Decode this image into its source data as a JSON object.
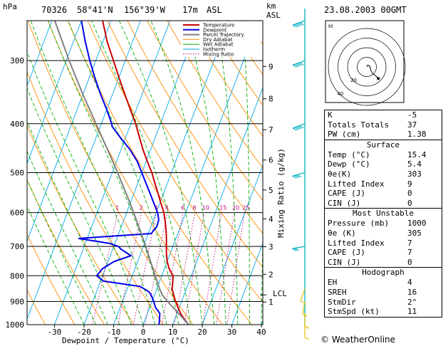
{
  "header": {
    "station": "70326",
    "lat": "58°41'N",
    "lon": "156°39'W",
    "elev": "17m",
    "asl": "ASL",
    "datetime": "23.08.2003 00GMT",
    "hpa": "hPa",
    "km": "km",
    "km_asl": "ASL"
  },
  "legend": [
    "Temperature",
    "Dewpoint",
    "Parcel Trajectory",
    "Dry Adiabat",
    "Wet Adiabat",
    "Isotherm",
    "Mixing Ratio"
  ],
  "colors": {
    "temperature": "#cc0000",
    "dewpoint": "#0000ee",
    "parcel": "#808080",
    "dry_adiabat": "#ff8c00",
    "wet_adiabat": "#00b000",
    "isotherm": "#00aaee",
    "mixing_ratio": "#c0007a",
    "wind": "#00b0c0",
    "wind_low": "#e0c000"
  },
  "chart_data": {
    "type": "line",
    "title": "",
    "xlabel": "Dewpoint / Temperature (°C)",
    "ylabel_right": "Mixing Ratio (g/kg)",
    "x_ticks": [
      -30,
      -20,
      -10,
      0,
      10,
      20,
      30,
      40
    ],
    "x_tick_labels": [
      "-30",
      "-20",
      "-10",
      "0",
      "10",
      "20",
      "30",
      "40"
    ],
    "pressure_levels": [
      300,
      400,
      500,
      600,
      700,
      800,
      900,
      1000
    ],
    "pressure_labels": [
      "300",
      "400",
      "500",
      "600",
      "700",
      "800",
      "900",
      "1000"
    ],
    "ylim_hpa": [
      1000,
      250
    ],
    "km_ticks": [
      {
        "km": "1",
        "p": 902
      },
      {
        "km": "2",
        "p": 795
      },
      {
        "km": "3",
        "p": 701
      },
      {
        "km": "4",
        "p": 617
      },
      {
        "km": "5",
        "p": 541
      },
      {
        "km": "6",
        "p": 472
      },
      {
        "km": "7",
        "p": 411
      },
      {
        "km": "8",
        "p": 357
      },
      {
        "km": "9",
        "p": 308
      }
    ],
    "lcl": {
      "label": "LCL",
      "p": 873
    },
    "mixing_ratio_labels": [
      "1",
      "2",
      "3",
      "4",
      "6",
      "8",
      "10",
      "15",
      "20",
      "25"
    ],
    "mixing_ratio_values": [
      1,
      2,
      3,
      4,
      6,
      8,
      10,
      15,
      20,
      25
    ],
    "series": [
      {
        "name": "Temperature",
        "points": [
          [
            1000,
            15.4
          ],
          [
            975,
            13.2
          ],
          [
            950,
            11.2
          ],
          [
            925,
            9.6
          ],
          [
            900,
            8.0
          ],
          [
            875,
            6.6
          ],
          [
            850,
            5.2
          ],
          [
            825,
            4.6
          ],
          [
            800,
            3.8
          ],
          [
            775,
            1.6
          ],
          [
            750,
            0.0
          ],
          [
            725,
            -1.2
          ],
          [
            700,
            -2.2
          ],
          [
            675,
            -3.2
          ],
          [
            650,
            -4.4
          ],
          [
            625,
            -5.8
          ],
          [
            600,
            -7.4
          ],
          [
            575,
            -9.6
          ],
          [
            550,
            -11.8
          ],
          [
            525,
            -14.2
          ],
          [
            500,
            -16.6
          ],
          [
            475,
            -19.6
          ],
          [
            450,
            -22.6
          ],
          [
            425,
            -25.4
          ],
          [
            400,
            -28.4
          ],
          [
            375,
            -32.0
          ],
          [
            350,
            -35.8
          ],
          [
            325,
            -39.8
          ],
          [
            300,
            -44.0
          ],
          [
            275,
            -48.6
          ],
          [
            250,
            -52.8
          ]
        ]
      },
      {
        "name": "Dewpoint",
        "points": [
          [
            1000,
            5.4
          ],
          [
            975,
            4.8
          ],
          [
            950,
            4.2
          ],
          [
            925,
            2.0
          ],
          [
            900,
            0.6
          ],
          [
            875,
            -1.0
          ],
          [
            860,
            -2.4
          ],
          [
            840,
            -6.0
          ],
          [
            820,
            -19.0
          ],
          [
            800,
            -22.0
          ],
          [
            775,
            -21.0
          ],
          [
            750,
            -18.0
          ],
          [
            730,
            -13.0
          ],
          [
            710,
            -17.0
          ],
          [
            700,
            -18.5
          ],
          [
            690,
            -22.0
          ],
          [
            675,
            -33.0
          ],
          [
            660,
            -9.0
          ],
          [
            640,
            -8.0
          ],
          [
            620,
            -8.2
          ],
          [
            600,
            -9.5
          ],
          [
            575,
            -12.0
          ],
          [
            550,
            -14.5
          ],
          [
            525,
            -17.2
          ],
          [
            500,
            -20.0
          ],
          [
            475,
            -23.0
          ],
          [
            450,
            -27.0
          ],
          [
            425,
            -32.0
          ],
          [
            405,
            -36.0
          ],
          [
            400,
            -36.5
          ],
          [
            375,
            -40.0
          ],
          [
            350,
            -44.0
          ],
          [
            325,
            -48.0
          ],
          [
            300,
            -52.0
          ],
          [
            275,
            -56.0
          ],
          [
            250,
            -60.0
          ]
        ]
      },
      {
        "name": "Parcel Trajectory",
        "points": [
          [
            1000,
            15.4
          ],
          [
            950,
            10.5
          ],
          [
            900,
            5.3
          ],
          [
            873,
            2.6
          ],
          [
            850,
            1.0
          ],
          [
            800,
            -2.2
          ],
          [
            750,
            -5.6
          ],
          [
            700,
            -9.2
          ],
          [
            650,
            -13.2
          ],
          [
            600,
            -17.6
          ],
          [
            550,
            -22.6
          ],
          [
            500,
            -28.2
          ],
          [
            450,
            -34.6
          ],
          [
            400,
            -41.8
          ],
          [
            350,
            -50.0
          ],
          [
            300,
            -59.0
          ],
          [
            250,
            -69.0
          ]
        ]
      }
    ],
    "hodograph": {
      "label": "kt",
      "rings": [
        10,
        20,
        30,
        40
      ],
      "ring_labels": [
        "20",
        "40"
      ],
      "points": [
        [
          0,
          0
        ],
        [
          1,
          2
        ],
        [
          3,
          1
        ],
        [
          4,
          -3
        ],
        [
          6,
          -7
        ],
        [
          9,
          -9
        ],
        [
          12,
          -12
        ]
      ]
    },
    "wind_barbs": [
      {
        "p": 250,
        "spd": 45,
        "dir": 250
      },
      {
        "p": 300,
        "spd": 40,
        "dir": 250
      },
      {
        "p": 400,
        "spd": 35,
        "dir": 250
      },
      {
        "p": 500,
        "spd": 30,
        "dir": 255
      },
      {
        "p": 700,
        "spd": 20,
        "dir": 260
      },
      {
        "p": 850,
        "spd": 10,
        "dir": 200
      },
      {
        "p": 900,
        "spd": 8,
        "dir": 190
      },
      {
        "p": 950,
        "spd": 5,
        "dir": 180
      },
      {
        "p": 1000,
        "spd": 5,
        "dir": 180
      }
    ]
  },
  "indices": {
    "rows1": [
      {
        "label": "K",
        "value": "-5"
      },
      {
        "label": "Totals Totals",
        "value": "37"
      },
      {
        "label": "PW (cm)",
        "value": "1.38"
      }
    ],
    "surface_title": "Surface",
    "surface": [
      {
        "label": "Temp (°C)",
        "value": "15.4"
      },
      {
        "label": "Dewp (°C)",
        "value": "5.4"
      },
      {
        "label": "θe(K)",
        "value": "303"
      },
      {
        "label": "Lifted Index",
        "value": "9"
      },
      {
        "label": "CAPE (J)",
        "value": "0"
      },
      {
        "label": "CIN (J)",
        "value": "0"
      }
    ],
    "mu_title": "Most Unstable",
    "most_unstable": [
      {
        "label": "Pressure (mb)",
        "value": "1000"
      },
      {
        "label": "θe (K)",
        "value": "305"
      },
      {
        "label": "Lifted Index",
        "value": "7"
      },
      {
        "label": "CAPE (J)",
        "value": "7"
      },
      {
        "label": "CIN (J)",
        "value": "0"
      }
    ],
    "hodo_title": "Hodograph",
    "hodograph": [
      {
        "label": "EH",
        "value": "4"
      },
      {
        "label": "SREH",
        "value": "16"
      },
      {
        "label": "StmDir",
        "value": "2°"
      },
      {
        "label": "StmSpd (kt)",
        "value": "11"
      }
    ]
  },
  "footer": {
    "logo": "© WeatherOnline"
  }
}
